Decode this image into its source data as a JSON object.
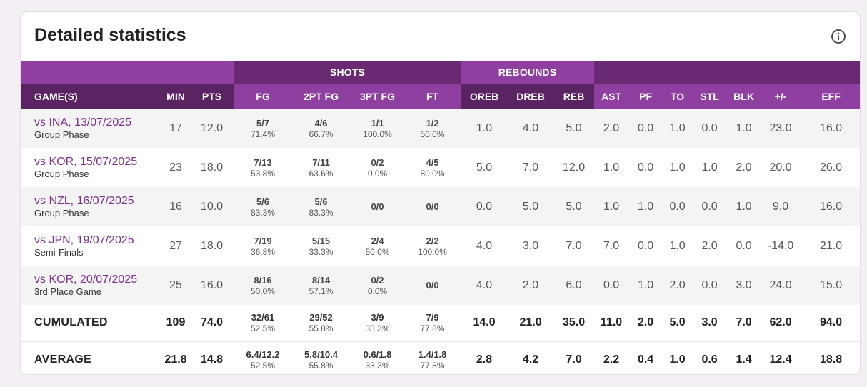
{
  "title": "Detailed statistics",
  "icons": {
    "info": "info-circle-icon"
  },
  "colors": {
    "header_dark": "#5a2362",
    "header_mid": "#692a73",
    "header_light": "#8f3fa0",
    "accent": "#7b2f8c"
  },
  "group_headers": {
    "shots": "SHOTS",
    "rebounds": "REBOUNDS"
  },
  "columns": {
    "game": "GAME(S)",
    "min": "MIN",
    "pts": "PTS",
    "fg": "FG",
    "fg2": "2PT FG",
    "fg3": "3PT FG",
    "ft": "FT",
    "oreb": "OREB",
    "dreb": "DREB",
    "reb": "REB",
    "ast": "AST",
    "pf": "PF",
    "to": "TO",
    "stl": "STL",
    "blk": "BLK",
    "pm": "+/-",
    "eff": "EFF"
  },
  "games": [
    {
      "opponent": "vs INA, 13/07/2025",
      "phase": "Group Phase",
      "min": "17",
      "pts": "12.0",
      "fg": "5/7",
      "fg_pct": "71.4%",
      "fg2": "4/6",
      "fg2_pct": "66.7%",
      "fg3": "1/1",
      "fg3_pct": "100.0%",
      "ft": "1/2",
      "ft_pct": "50.0%",
      "oreb": "1.0",
      "dreb": "4.0",
      "reb": "5.0",
      "ast": "2.0",
      "pf": "0.0",
      "to": "1.0",
      "stl": "0.0",
      "blk": "1.0",
      "pm": "23.0",
      "eff": "16.0"
    },
    {
      "opponent": "vs KOR, 15/07/2025",
      "phase": "Group Phase",
      "min": "23",
      "pts": "18.0",
      "fg": "7/13",
      "fg_pct": "53.8%",
      "fg2": "7/11",
      "fg2_pct": "63.6%",
      "fg3": "0/2",
      "fg3_pct": "0.0%",
      "ft": "4/5",
      "ft_pct": "80.0%",
      "oreb": "5.0",
      "dreb": "7.0",
      "reb": "12.0",
      "ast": "1.0",
      "pf": "0.0",
      "to": "1.0",
      "stl": "1.0",
      "blk": "2.0",
      "pm": "20.0",
      "eff": "26.0"
    },
    {
      "opponent": "vs NZL, 16/07/2025",
      "phase": "Group Phase",
      "min": "16",
      "pts": "10.0",
      "fg": "5/6",
      "fg_pct": "83.3%",
      "fg2": "5/6",
      "fg2_pct": "83.3%",
      "fg3": "0/0",
      "fg3_pct": "",
      "ft": "0/0",
      "ft_pct": "",
      "oreb": "0.0",
      "dreb": "5.0",
      "reb": "5.0",
      "ast": "1.0",
      "pf": "1.0",
      "to": "0.0",
      "stl": "0.0",
      "blk": "1.0",
      "pm": "9.0",
      "eff": "16.0"
    },
    {
      "opponent": "vs JPN, 19/07/2025",
      "phase": "Semi-Finals",
      "min": "27",
      "pts": "18.0",
      "fg": "7/19",
      "fg_pct": "36.8%",
      "fg2": "5/15",
      "fg2_pct": "33.3%",
      "fg3": "2/4",
      "fg3_pct": "50.0%",
      "ft": "2/2",
      "ft_pct": "100.0%",
      "oreb": "4.0",
      "dreb": "3.0",
      "reb": "7.0",
      "ast": "7.0",
      "pf": "0.0",
      "to": "1.0",
      "stl": "2.0",
      "blk": "0.0",
      "pm": "-14.0",
      "eff": "21.0"
    },
    {
      "opponent": "vs KOR, 20/07/2025",
      "phase": "3rd Place Game",
      "min": "25",
      "pts": "16.0",
      "fg": "8/16",
      "fg_pct": "50.0%",
      "fg2": "8/14",
      "fg2_pct": "57.1%",
      "fg3": "0/2",
      "fg3_pct": "0.0%",
      "ft": "0/0",
      "ft_pct": "",
      "oreb": "4.0",
      "dreb": "2.0",
      "reb": "6.0",
      "ast": "0.0",
      "pf": "1.0",
      "to": "2.0",
      "stl": "0.0",
      "blk": "3.0",
      "pm": "24.0",
      "eff": "15.0"
    }
  ],
  "cumulated": {
    "label": "CUMULATED",
    "min": "109",
    "pts": "74.0",
    "fg": "32/61",
    "fg_pct": "52.5%",
    "fg2": "29/52",
    "fg2_pct": "55.8%",
    "fg3": "3/9",
    "fg3_pct": "33.3%",
    "ft": "7/9",
    "ft_pct": "77.8%",
    "oreb": "14.0",
    "dreb": "21.0",
    "reb": "35.0",
    "ast": "11.0",
    "pf": "2.0",
    "to": "5.0",
    "stl": "3.0",
    "blk": "7.0",
    "pm": "62.0",
    "eff": "94.0"
  },
  "average": {
    "label": "AVERAGE",
    "min": "21.8",
    "pts": "14.8",
    "fg": "6.4/12.2",
    "fg_pct": "52.5%",
    "fg2": "5.8/10.4",
    "fg2_pct": "55.8%",
    "fg3": "0.6/1.8",
    "fg3_pct": "33.3%",
    "ft": "1.4/1.8",
    "ft_pct": "77.8%",
    "oreb": "2.8",
    "dreb": "4.2",
    "reb": "7.0",
    "ast": "2.2",
    "pf": "0.4",
    "to": "1.0",
    "stl": "0.6",
    "blk": "1.4",
    "pm": "12.4",
    "eff": "18.8"
  }
}
